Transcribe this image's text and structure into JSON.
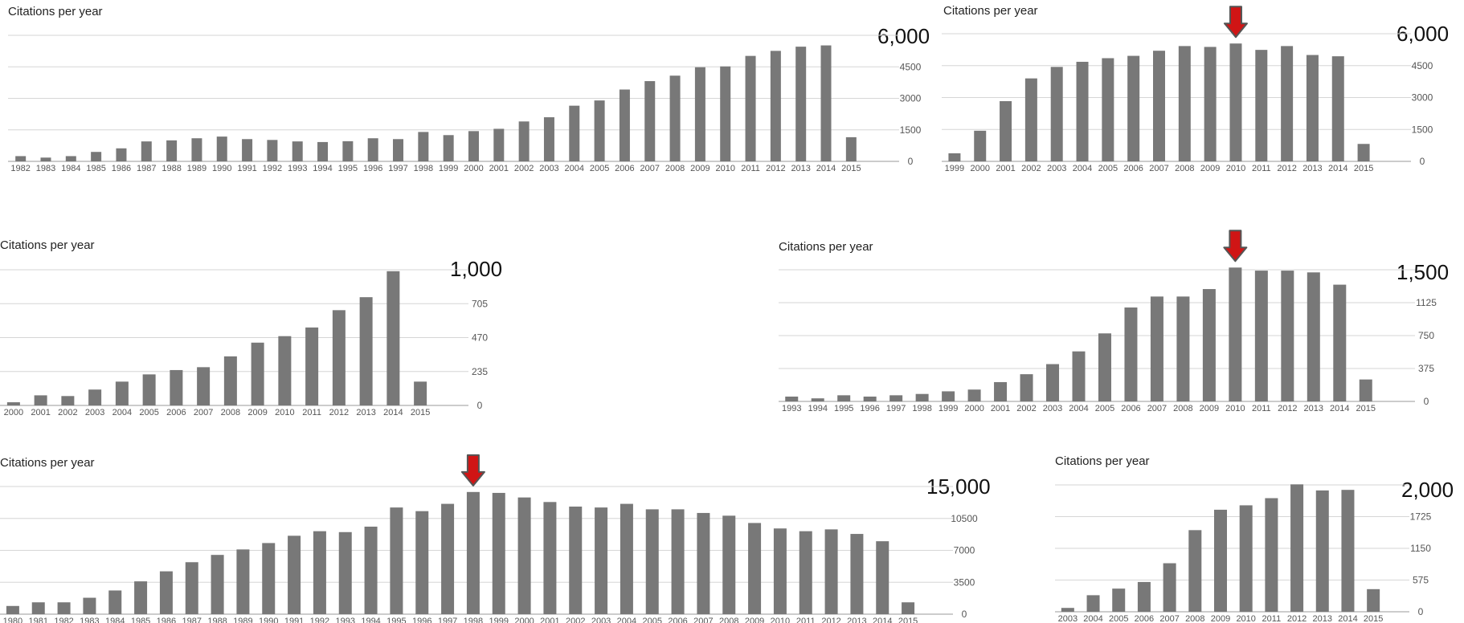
{
  "chart_data": [
    {
      "type": "bar",
      "title": "Citations per year",
      "max_label": "6,000",
      "ylim": [
        0,
        6000
      ],
      "yticks": [
        "6000",
        "4500",
        "3000",
        "1500",
        "0"
      ],
      "ytick_labels": [
        "",
        "4500",
        "3000",
        "1500",
        "0"
      ],
      "categories": [
        "1982",
        "1983",
        "1984",
        "1985",
        "1986",
        "1987",
        "1988",
        "1989",
        "1990",
        "1991",
        "1992",
        "1993",
        "1994",
        "1995",
        "1996",
        "1997",
        "1998",
        "1999",
        "2000",
        "2001",
        "2002",
        "2003",
        "2004",
        "2005",
        "2006",
        "2007",
        "2008",
        "2009",
        "2010",
        "2011",
        "2012",
        "2013",
        "2014",
        "2015"
      ],
      "values": [
        250,
        180,
        250,
        450,
        620,
        950,
        1000,
        1100,
        1180,
        1060,
        1020,
        950,
        920,
        960,
        1100,
        1060,
        1400,
        1250,
        1440,
        1550,
        1900,
        2100,
        2650,
        2900,
        3420,
        3820,
        4080,
        4480,
        4520,
        5020,
        5260,
        5460,
        5520,
        1150
      ],
      "grid": true,
      "highlight": null
    },
    {
      "type": "bar",
      "title": "Citations per year",
      "max_label": "6,000",
      "ylim": [
        0,
        6000
      ],
      "yticks": [
        "6000",
        "4500",
        "3000",
        "1500",
        "0"
      ],
      "ytick_labels": [
        "",
        "4500",
        "3000",
        "1500",
        "0"
      ],
      "categories": [
        "1999",
        "2000",
        "2001",
        "2002",
        "2003",
        "2004",
        "2005",
        "2006",
        "2007",
        "2008",
        "2009",
        "2010",
        "2011",
        "2012",
        "2013",
        "2014",
        "2015"
      ],
      "values": [
        380,
        1440,
        2830,
        3900,
        4440,
        4680,
        4850,
        4960,
        5200,
        5420,
        5380,
        5540,
        5240,
        5420,
        5000,
        4940,
        820
      ],
      "grid": true,
      "highlight": "2010"
    },
    {
      "type": "bar",
      "title": "Citations per year",
      "max_label": "1,000",
      "ylim": [
        0,
        940
      ],
      "yticks": [
        "940",
        "705",
        "470",
        "235",
        "0"
      ],
      "ytick_labels": [
        "",
        "705",
        "470",
        "235",
        "0"
      ],
      "categories": [
        "2000",
        "2001",
        "2002",
        "2003",
        "2004",
        "2005",
        "2006",
        "2007",
        "2008",
        "2009",
        "2010",
        "2011",
        "2012",
        "2013",
        "2014",
        "2015"
      ],
      "values": [
        22,
        70,
        65,
        110,
        165,
        215,
        245,
        265,
        340,
        435,
        480,
        540,
        660,
        750,
        930,
        165
      ],
      "grid": true,
      "highlight": null
    },
    {
      "type": "bar",
      "title": "Citations per year",
      "max_label": "1,500",
      "ylim": [
        0,
        1500
      ],
      "yticks": [
        "1500",
        "1125",
        "750",
        "375",
        "0"
      ],
      "ytick_labels": [
        "",
        "1125",
        "750",
        "375",
        "0"
      ],
      "categories": [
        "1993",
        "1994",
        "1995",
        "1996",
        "1997",
        "1998",
        "1999",
        "2000",
        "2001",
        "2002",
        "2003",
        "2004",
        "2005",
        "2006",
        "2007",
        "2008",
        "2009",
        "2010",
        "2011",
        "2012",
        "2013",
        "2014",
        "2015"
      ],
      "values": [
        55,
        35,
        70,
        55,
        70,
        85,
        115,
        135,
        220,
        310,
        425,
        570,
        775,
        1070,
        1195,
        1195,
        1280,
        1525,
        1490,
        1490,
        1470,
        1330,
        250
      ],
      "grid": true,
      "highlight": "2010"
    },
    {
      "type": "bar",
      "title": "Citations per year",
      "max_label": "15,000",
      "ylim": [
        0,
        14000
      ],
      "yticks": [
        "14000",
        "10500",
        "7000",
        "3500",
        "0"
      ],
      "ytick_labels": [
        "",
        "10500",
        "7000",
        "3500",
        "0"
      ],
      "categories": [
        "1980",
        "1981",
        "1982",
        "1983",
        "1984",
        "1985",
        "1986",
        "1987",
        "1988",
        "1989",
        "1990",
        "1991",
        "1992",
        "1993",
        "1994",
        "1995",
        "1996",
        "1997",
        "1998",
        "1999",
        "2000",
        "2001",
        "2002",
        "2003",
        "2004",
        "2005",
        "2006",
        "2007",
        "2008",
        "2009",
        "2010",
        "2011",
        "2012",
        "2013",
        "2014",
        "2015"
      ],
      "values": [
        900,
        1300,
        1300,
        1800,
        2600,
        3600,
        4700,
        5700,
        6500,
        7100,
        7800,
        8600,
        9100,
        9000,
        9600,
        11700,
        11300,
        12100,
        13400,
        13300,
        12800,
        12300,
        11800,
        11700,
        12100,
        11500,
        11500,
        11100,
        10800,
        10000,
        9400,
        9100,
        9300,
        8800,
        8000,
        1300
      ],
      "grid": true,
      "highlight": "1998"
    },
    {
      "type": "bar",
      "title": "Citations per year",
      "max_label": "2,000",
      "ylim": [
        0,
        2300
      ],
      "yticks": [
        "2300",
        "1725",
        "1150",
        "575",
        "0"
      ],
      "ytick_labels": [
        "",
        "1725",
        "1150",
        "575",
        "0"
      ],
      "categories": [
        "2003",
        "2004",
        "2005",
        "2006",
        "2007",
        "2008",
        "2009",
        "2010",
        "2011",
        "2012",
        "2013",
        "2014",
        "2015"
      ],
      "values": [
        70,
        300,
        420,
        540,
        880,
        1480,
        1850,
        1930,
        2060,
        2310,
        2200,
        2210,
        410
      ],
      "grid": true,
      "highlight": null
    }
  ]
}
